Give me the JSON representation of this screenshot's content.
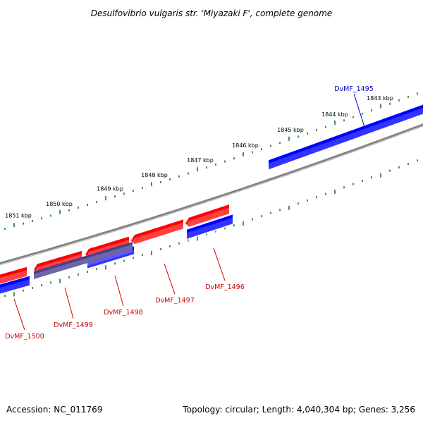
{
  "title": "Desulfovibrio vulgaris str. 'Miyazaki F', complete genome",
  "kbp_labels": [
    "1851 kbp",
    "1850 kbp",
    "1849 kbp",
    "1848 kbp",
    "1847 kbp",
    "1846 kbp",
    "1845 kbp",
    "1844 kbp",
    "1843 kbp"
  ],
  "genes": [
    {
      "label": "DvMF_1495",
      "color": "#0000cc"
    },
    {
      "label": "DvMF_1496",
      "color": "#cc0000"
    },
    {
      "label": "DvMF_1497",
      "color": "#cc0000"
    },
    {
      "label": "DvMF_1498",
      "color": "#cc0000"
    },
    {
      "label": "DvMF_1499",
      "color": "#cc0000"
    },
    {
      "label": "DvMF_1500",
      "color": "#cc0000"
    }
  ],
  "colors": {
    "forward_strand": "#ff0000",
    "reverse_strand": "#0000ff",
    "backbone": "#808080",
    "tick": "#1a7a1a",
    "overlap": "#4a3f8f"
  },
  "footer": {
    "accession": "Accession: NC_011769",
    "stats": "Topology: circular; Length: 4,040,304 bp; Genes: 3,256"
  }
}
